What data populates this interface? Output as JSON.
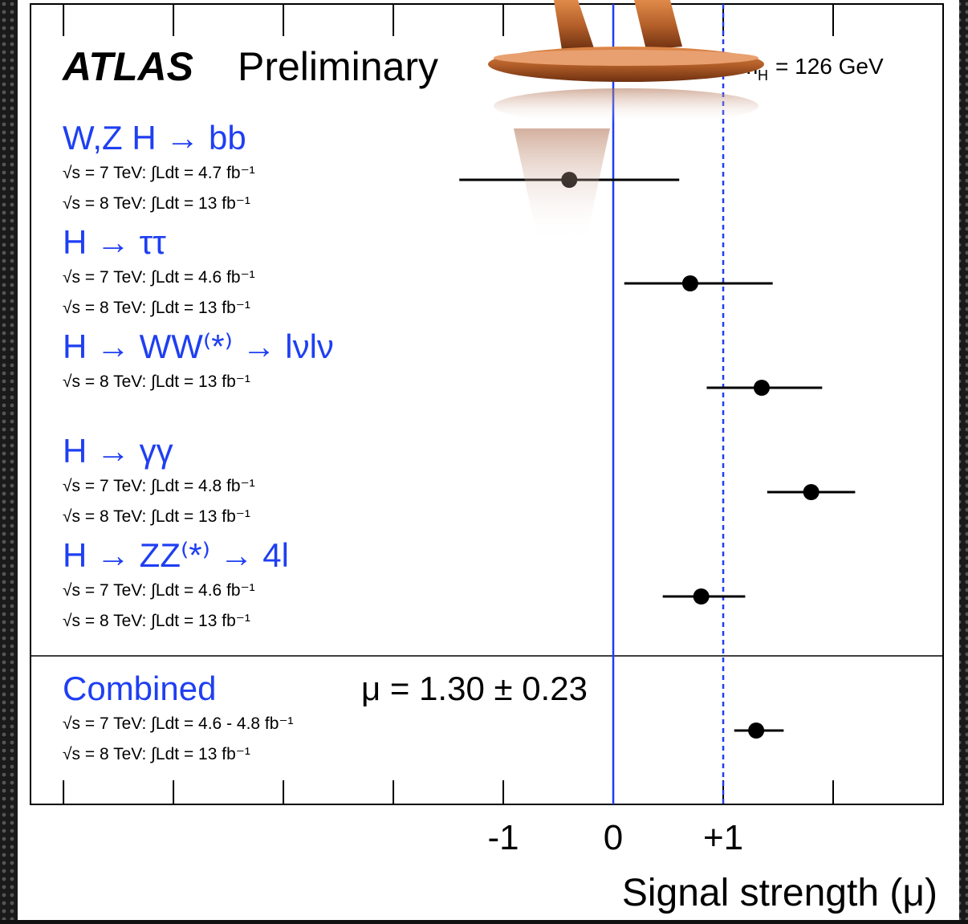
{
  "chart_data": {
    "type": "forest",
    "experiment": "ATLAS",
    "status": "Preliminary",
    "mass_label": "m",
    "mass_label_sub": "H",
    "mass_value": "= 126 GeV",
    "categories": [
      "W,Z H → bb",
      "H → ττ",
      "H → WW⁽*⁾ → lνlν",
      "H → γγ",
      "H → ZZ⁽*⁾ → 4l",
      "Combined"
    ],
    "lumi_labels": [
      [
        "√s = 7 TeV: ∫Ldt = 4.7 fb⁻¹",
        "√s = 8 TeV: ∫Ldt = 13 fb⁻¹"
      ],
      [
        "√s = 7 TeV: ∫Ldt = 4.6 fb⁻¹",
        "√s = 8 TeV: ∫Ldt = 13 fb⁻¹"
      ],
      [
        "√s = 8 TeV: ∫Ldt = 13 fb⁻¹"
      ],
      [
        "√s = 7 TeV: ∫Ldt = 4.8 fb⁻¹",
        "√s = 8 TeV: ∫Ldt = 13 fb⁻¹"
      ],
      [
        "√s = 7 TeV: ∫Ldt = 4.6 fb⁻¹",
        "√s = 8 TeV: ∫Ldt = 13 fb⁻¹"
      ],
      [
        "√s = 7 TeV: ∫Ldt = 4.6 - 4.8 fb⁻¹",
        "√s = 8 TeV: ∫Ldt = 13 fb⁻¹"
      ]
    ],
    "values": [
      -0.4,
      0.7,
      1.35,
      1.8,
      0.8,
      1.3
    ],
    "errors_low": [
      1.0,
      0.6,
      0.5,
      0.4,
      0.35,
      0.2
    ],
    "errors_high": [
      1.0,
      0.75,
      0.55,
      0.4,
      0.4,
      0.25
    ],
    "combined_annotation": "μ = 1.30 ± 0.23",
    "xlabel": "Signal strength (μ)",
    "xlim": [
      -5.3,
      3.0
    ],
    "xticks": [
      -1,
      0,
      {
        "value": 1,
        "label": "+1"
      }
    ],
    "minor_xticks": [
      -5,
      -4,
      -3,
      -2,
      2
    ],
    "vlines": [
      {
        "value": 0,
        "style": "solid"
      },
      {
        "value": 1,
        "style": "dashed"
      }
    ],
    "label_color": "#1f3ff2",
    "line_color": "#1f3ff2",
    "color": "#000000"
  }
}
